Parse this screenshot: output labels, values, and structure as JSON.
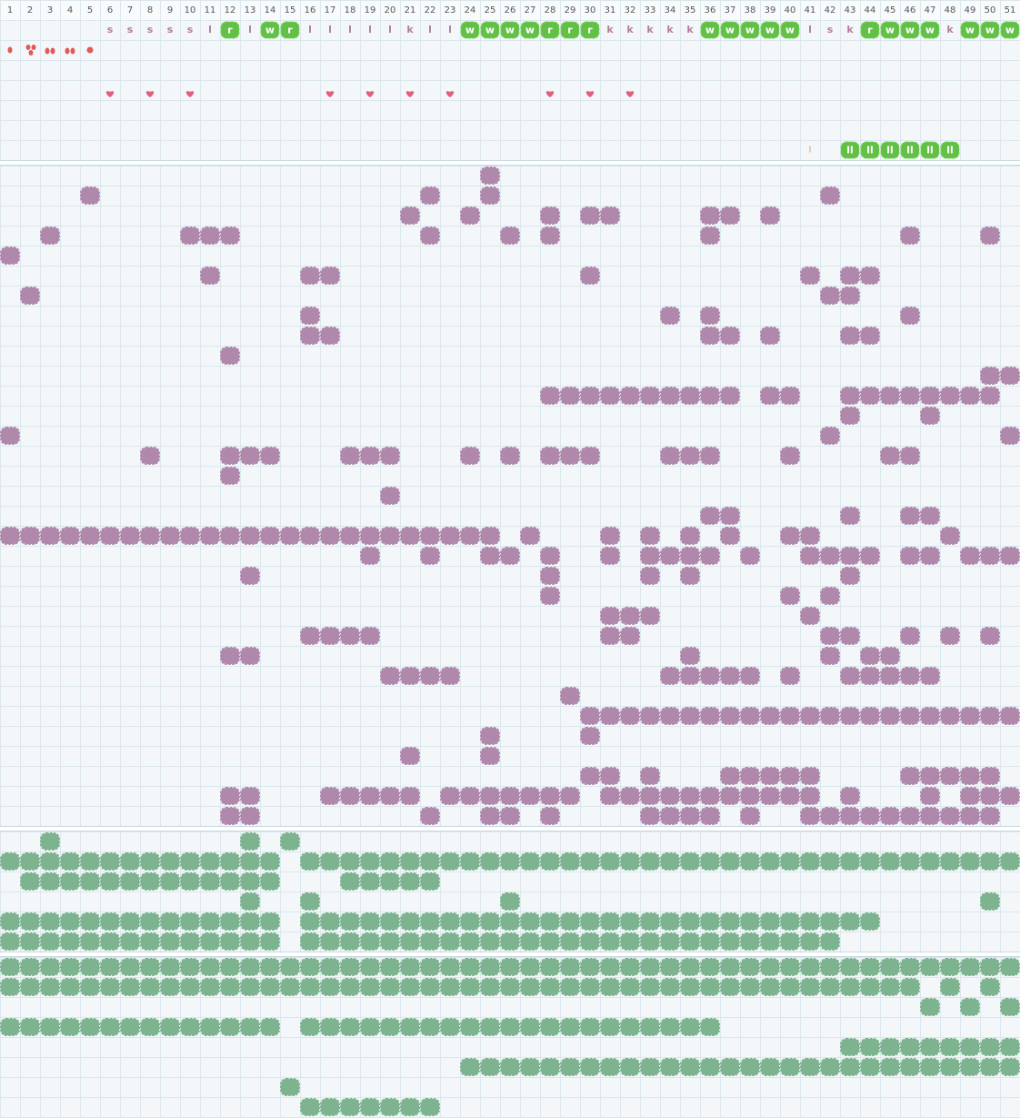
{
  "header": {
    "columns": [
      1,
      2,
      3,
      4,
      5,
      6,
      7,
      8,
      9,
      10,
      11,
      12,
      13,
      14,
      15,
      16,
      17,
      18,
      19,
      20,
      21,
      22,
      23,
      24,
      25,
      26,
      27,
      28,
      29,
      30,
      31,
      32,
      33,
      34,
      35,
      36,
      37,
      38,
      39,
      40,
      41,
      42,
      43,
      44,
      45,
      46,
      47,
      48,
      49,
      50,
      51
    ]
  },
  "letter_track": {
    "plain": [
      {
        "col": 6,
        "text": "s"
      },
      {
        "col": 7,
        "text": "s"
      },
      {
        "col": 8,
        "text": "s"
      },
      {
        "col": 9,
        "text": "s"
      },
      {
        "col": 10,
        "text": "s"
      },
      {
        "col": 11,
        "text": "l"
      },
      {
        "col": 13,
        "text": "l"
      },
      {
        "col": 16,
        "text": "l"
      },
      {
        "col": 17,
        "text": "l"
      },
      {
        "col": 18,
        "text": "l"
      },
      {
        "col": 19,
        "text": "l"
      },
      {
        "col": 20,
        "text": "l"
      },
      {
        "col": 21,
        "text": "k"
      },
      {
        "col": 22,
        "text": "l"
      },
      {
        "col": 23,
        "text": "l"
      },
      {
        "col": 31,
        "text": "k"
      },
      {
        "col": 32,
        "text": "k"
      },
      {
        "col": 33,
        "text": "k"
      },
      {
        "col": 34,
        "text": "k"
      },
      {
        "col": 35,
        "text": "k"
      },
      {
        "col": 41,
        "text": "l"
      },
      {
        "col": 42,
        "text": "s"
      },
      {
        "col": 43,
        "text": "k"
      },
      {
        "col": 48,
        "text": "k"
      }
    ],
    "tiles": [
      {
        "col": 12,
        "text": "r"
      },
      {
        "col": 14,
        "text": "w"
      },
      {
        "col": 15,
        "text": "r"
      },
      {
        "col": 24,
        "text": "w"
      },
      {
        "col": 25,
        "text": "w"
      },
      {
        "col": 26,
        "text": "w"
      },
      {
        "col": 27,
        "text": "w"
      },
      {
        "col": 28,
        "text": "r"
      },
      {
        "col": 29,
        "text": "r"
      },
      {
        "col": 30,
        "text": "r"
      },
      {
        "col": 36,
        "text": "w"
      },
      {
        "col": 37,
        "text": "w"
      },
      {
        "col": 38,
        "text": "w"
      },
      {
        "col": 39,
        "text": "w"
      },
      {
        "col": 40,
        "text": "w"
      },
      {
        "col": 44,
        "text": "r"
      },
      {
        "col": 45,
        "text": "w"
      },
      {
        "col": 46,
        "text": "w"
      },
      {
        "col": 47,
        "text": "w"
      },
      {
        "col": 49,
        "text": "w"
      },
      {
        "col": 50,
        "text": "w"
      },
      {
        "col": 51,
        "text": "w"
      }
    ]
  },
  "heart_track": {
    "cols": [
      6,
      8,
      10,
      17,
      19,
      21,
      23,
      28,
      30,
      32
    ],
    "color": "#e0607a"
  },
  "pair_track": {
    "plain": [
      {
        "col": 41,
        "text": "l"
      }
    ],
    "tiles": [
      {
        "col": 43,
        "text": "ll"
      },
      {
        "col": 44,
        "text": "ll"
      },
      {
        "col": 45,
        "text": "ll"
      },
      {
        "col": 46,
        "text": "ll"
      },
      {
        "col": 47,
        "text": "ll"
      },
      {
        "col": 48,
        "text": "ll"
      }
    ]
  },
  "grids": [
    {
      "color": "#b088ac",
      "rows": [
        [
          25
        ],
        [
          5,
          22,
          25,
          42
        ],
        [
          21,
          24,
          28,
          30,
          31,
          36,
          37,
          39
        ],
        [
          3,
          10,
          11,
          12,
          22,
          26,
          28,
          36,
          46,
          50
        ],
        [
          1
        ],
        [
          11,
          16,
          17,
          30,
          41,
          43,
          44
        ],
        [
          2,
          42,
          43
        ],
        [
          16,
          34,
          36,
          46
        ],
        [
          16,
          17,
          36,
          37,
          39,
          43,
          44
        ],
        [
          12
        ],
        [
          50,
          51
        ],
        [
          28,
          29,
          30,
          31,
          32,
          33,
          34,
          35,
          36,
          37,
          39,
          40,
          43,
          44,
          45,
          46,
          47,
          48,
          49,
          50
        ],
        [
          43,
          47
        ],
        [
          1,
          42,
          51
        ],
        [
          8,
          12,
          13,
          14,
          18,
          19,
          20,
          24,
          26,
          28,
          29,
          30,
          34,
          35,
          36,
          40,
          45,
          46
        ],
        [
          12
        ],
        [
          20
        ],
        [
          36,
          37,
          43,
          46,
          47
        ],
        [
          1,
          2,
          3,
          4,
          5,
          6,
          7,
          8,
          9,
          10,
          11,
          12,
          13,
          14,
          15,
          16,
          17,
          18,
          19,
          20,
          21,
          22,
          23,
          24,
          25,
          27,
          31,
          33,
          35,
          37,
          40,
          41,
          48
        ],
        [
          19,
          22,
          25,
          26,
          28,
          31,
          33,
          34,
          35,
          36,
          38,
          41,
          42,
          43,
          44,
          46,
          47,
          49,
          50,
          51
        ],
        [
          13,
          28,
          33,
          35,
          43
        ],
        [
          28,
          40,
          42
        ],
        [
          31,
          32,
          33,
          41
        ],
        [
          16,
          17,
          18,
          19,
          31,
          32,
          42,
          43,
          46,
          48,
          50
        ],
        [
          12,
          13,
          35,
          42,
          44,
          45
        ],
        [
          20,
          21,
          22,
          23,
          34,
          35,
          36,
          37,
          38,
          40,
          43,
          44,
          45,
          46,
          47
        ],
        [
          29
        ],
        [
          30,
          31,
          32,
          33,
          34,
          35,
          36,
          37,
          38,
          39,
          40,
          41,
          42,
          43,
          44,
          45,
          46,
          47,
          48,
          49,
          50,
          51
        ],
        [
          25,
          30
        ],
        [
          21,
          25
        ],
        [
          30,
          31,
          33,
          37,
          38,
          39,
          40,
          41,
          46,
          47,
          48,
          49,
          50
        ],
        [
          12,
          13,
          17,
          18,
          19,
          20,
          21,
          23,
          24,
          25,
          26,
          27,
          28,
          29,
          31,
          32,
          33,
          34,
          35,
          36,
          37,
          38,
          39,
          40,
          41,
          43,
          47,
          49,
          50,
          51
        ],
        [
          12,
          13,
          22,
          25,
          26,
          28,
          33,
          34,
          35,
          36,
          38,
          41,
          42,
          43,
          44,
          45,
          46,
          47,
          48,
          49,
          50
        ]
      ]
    },
    {
      "color": "#7db38f",
      "rows": [
        [
          3,
          13,
          15
        ],
        [
          1,
          2,
          3,
          4,
          5,
          6,
          7,
          8,
          9,
          10,
          11,
          12,
          13,
          14,
          16,
          17,
          18,
          19,
          20,
          21,
          22,
          23,
          24,
          25,
          26,
          27,
          28,
          29,
          30,
          31,
          32,
          33,
          34,
          35,
          36,
          37,
          38,
          39,
          40,
          41,
          42,
          43,
          44,
          45,
          46,
          47,
          48,
          49,
          50,
          51
        ],
        [
          2,
          3,
          4,
          5,
          6,
          7,
          8,
          9,
          10,
          11,
          12,
          13,
          14,
          18,
          19,
          20,
          21,
          22
        ],
        [
          13,
          16,
          26,
          50
        ],
        [
          1,
          2,
          3,
          4,
          5,
          6,
          7,
          8,
          9,
          10,
          11,
          12,
          13,
          14,
          16,
          17,
          18,
          19,
          20,
          21,
          22,
          23,
          24,
          25,
          26,
          27,
          28,
          29,
          30,
          31,
          32,
          33,
          34,
          35,
          36,
          37,
          38,
          39,
          40,
          41,
          42,
          43,
          44
        ],
        [
          1,
          2,
          3,
          4,
          5,
          6,
          7,
          8,
          9,
          10,
          11,
          12,
          13,
          14,
          16,
          17,
          18,
          19,
          20,
          21,
          22,
          23,
          24,
          25,
          26,
          27,
          28,
          29,
          30,
          31,
          32,
          33,
          34,
          35,
          36,
          37,
          38,
          39,
          40,
          41,
          42
        ]
      ]
    },
    {
      "color": "#7db38f",
      "rows": [
        [
          1,
          2,
          3,
          4,
          5,
          6,
          7,
          8,
          9,
          10,
          11,
          12,
          13,
          14,
          15,
          16,
          17,
          18,
          19,
          20,
          21,
          22,
          23,
          24,
          25,
          26,
          27,
          28,
          29,
          30,
          31,
          32,
          33,
          34,
          35,
          36,
          37,
          38,
          39,
          40,
          41,
          42,
          43,
          44,
          45,
          46,
          47,
          48,
          49,
          50,
          51
        ],
        [
          1,
          2,
          3,
          4,
          5,
          6,
          7,
          8,
          9,
          10,
          11,
          12,
          13,
          14,
          15,
          16,
          17,
          18,
          19,
          20,
          21,
          22,
          23,
          24,
          25,
          26,
          27,
          28,
          29,
          30,
          31,
          32,
          33,
          34,
          35,
          36,
          37,
          38,
          39,
          40,
          41,
          42,
          43,
          44,
          45,
          46,
          48,
          50
        ],
        [
          47,
          49,
          51
        ],
        [
          1,
          2,
          3,
          4,
          5,
          6,
          7,
          8,
          9,
          10,
          11,
          12,
          13,
          14,
          16,
          17,
          18,
          19,
          20,
          21,
          22,
          23,
          24,
          25,
          26,
          27,
          28,
          29,
          30,
          31,
          32,
          33,
          34,
          35,
          36
        ],
        [
          43,
          44,
          45,
          46,
          47,
          48,
          49,
          50,
          51
        ],
        [
          24,
          25,
          26,
          27,
          28,
          29,
          30,
          31,
          32,
          33,
          34,
          35,
          36,
          37,
          38,
          39,
          40,
          41,
          42,
          43,
          44,
          45,
          46,
          47,
          48,
          49,
          50,
          51
        ],
        [
          15
        ],
        [
          16,
          17,
          18,
          19,
          20,
          21,
          22
        ]
      ]
    }
  ]
}
